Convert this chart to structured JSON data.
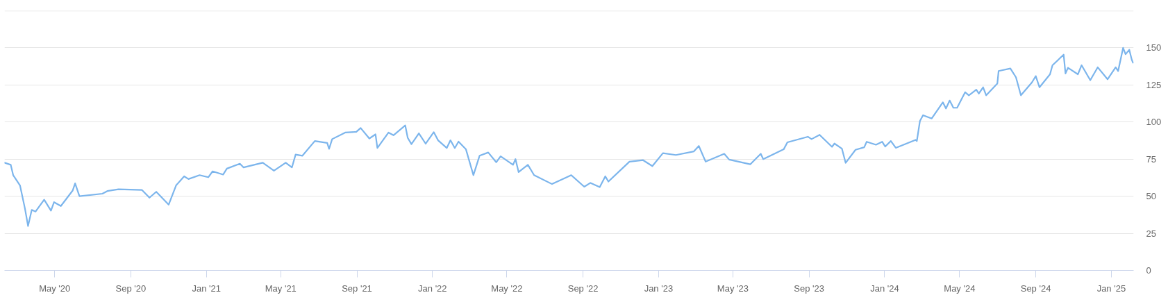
{
  "chart_data": {
    "type": "line",
    "x": [
      "2020-02-10",
      "2020-02-20",
      "2020-02-24",
      "2020-03-06",
      "2020-03-14",
      "2020-03-19",
      "2020-03-25",
      "2020-03-31",
      "2020-04-14",
      "2020-04-25",
      "2020-04-30",
      "2020-05-11",
      "2020-05-30",
      "2020-06-03",
      "2020-06-10",
      "2020-07-17",
      "2020-07-25",
      "2020-08-12",
      "2020-09-19",
      "2020-10-01",
      "2020-10-12",
      "2020-11-01",
      "2020-11-13",
      "2020-11-26",
      "2020-12-03",
      "2020-12-21",
      "2021-01-04",
      "2021-01-11",
      "2021-01-28",
      "2021-02-03",
      "2021-02-24",
      "2021-03-02",
      "2021-04-02",
      "2021-04-20",
      "2021-05-09",
      "2021-05-19",
      "2021-05-25",
      "2021-06-05",
      "2021-06-25",
      "2021-07-15",
      "2021-07-18",
      "2021-07-23",
      "2021-08-13",
      "2021-08-31",
      "2021-09-07",
      "2021-09-21",
      "2021-10-01",
      "2021-10-04",
      "2021-10-22",
      "2021-10-30",
      "2021-11-18",
      "2021-11-22",
      "2021-11-28",
      "2021-12-10",
      "2021-12-21",
      "2022-01-03",
      "2022-01-10",
      "2022-01-24",
      "2022-01-30",
      "2022-02-06",
      "2022-02-12",
      "2022-02-24",
      "2022-03-08",
      "2022-03-18",
      "2022-04-01",
      "2022-04-14",
      "2022-04-21",
      "2022-05-11",
      "2022-05-15",
      "2022-05-20",
      "2022-06-04",
      "2022-06-14",
      "2022-07-13",
      "2022-08-13",
      "2022-09-03",
      "2022-09-13",
      "2022-09-28",
      "2022-10-07",
      "2022-10-12",
      "2022-11-15",
      "2022-12-07",
      "2022-12-22",
      "2023-01-08",
      "2023-01-29",
      "2023-02-27",
      "2023-03-07",
      "2023-03-18",
      "2023-04-17",
      "2023-04-25",
      "2023-05-29",
      "2023-06-15",
      "2023-06-19",
      "2023-07-22",
      "2023-07-28",
      "2023-08-30",
      "2023-09-05",
      "2023-09-18",
      "2023-10-08",
      "2023-10-12",
      "2023-10-24",
      "2023-10-30",
      "2023-11-15",
      "2023-11-29",
      "2023-12-03",
      "2023-12-18",
      "2023-12-28",
      "2024-01-02",
      "2024-01-11",
      "2024-01-19",
      "2024-02-20",
      "2024-02-22",
      "2024-02-27",
      "2024-03-03",
      "2024-03-17",
      "2024-04-04",
      "2024-04-09",
      "2024-04-15",
      "2024-04-21",
      "2024-04-27",
      "2024-05-10",
      "2024-05-16",
      "2024-05-28",
      "2024-06-01",
      "2024-06-08",
      "2024-06-13",
      "2024-07-01",
      "2024-07-03",
      "2024-07-22",
      "2024-07-31",
      "2024-08-08",
      "2024-08-26",
      "2024-09-01",
      "2024-09-07",
      "2024-09-24",
      "2024-09-28",
      "2024-10-16",
      "2024-10-19",
      "2024-10-23",
      "2024-11-08",
      "2024-11-14",
      "2024-11-28",
      "2024-12-10",
      "2024-12-26",
      "2025-01-08",
      "2025-01-12",
      "2025-01-20",
      "2025-01-24",
      "2025-01-30",
      "2025-02-03",
      "2025-02-05"
    ],
    "series": [
      {
        "color": "#7cb5ec",
        "values": [
          72.6,
          71.2,
          64.2,
          57.3,
          41.7,
          29.9,
          40.8,
          39.6,
          47.7,
          40.3,
          46.0,
          43.4,
          53.8,
          58.7,
          50.0,
          51.7,
          53.5,
          54.7,
          54.2,
          49.0,
          53.0,
          44.3,
          57.3,
          63.4,
          61.6,
          64.2,
          62.8,
          66.8,
          64.6,
          68.6,
          71.9,
          69.4,
          72.6,
          67.2,
          72.6,
          69.4,
          78.1,
          77.3,
          87.2,
          85.9,
          81.9,
          88.5,
          92.9,
          93.4,
          96.0,
          88.9,
          91.7,
          82.5,
          92.9,
          91.1,
          97.7,
          89.4,
          85.1,
          92.4,
          85.4,
          93.2,
          87.7,
          82.5,
          87.7,
          82.5,
          86.8,
          81.6,
          64.2,
          77.3,
          79.5,
          72.9,
          76.9,
          71.2,
          75.0,
          66.3,
          71.2,
          64.2,
          58.2,
          64.2,
          56.4,
          59.0,
          56.1,
          63.4,
          59.9,
          73.3,
          74.3,
          70.3,
          79.0,
          77.8,
          80.2,
          83.9,
          73.3,
          78.6,
          74.7,
          71.5,
          78.6,
          75.0,
          81.6,
          86.3,
          90.1,
          88.5,
          91.4,
          83.3,
          85.5,
          82.1,
          72.5,
          81.3,
          83.0,
          86.7,
          84.7,
          86.7,
          83.5,
          87.2,
          82.6,
          88.0,
          87.2,
          100.7,
          104.6,
          102.4,
          113.3,
          109.1,
          114.5,
          109.6,
          109.6,
          120.1,
          118.0,
          121.8,
          119.2,
          123.4,
          118.0,
          126.0,
          134.4,
          136.1,
          130.2,
          118.0,
          126.8,
          131.0,
          123.4,
          132.2,
          138.3,
          145.4,
          132.7,
          136.6,
          132.2,
          138.3,
          128.2,
          136.9,
          128.8,
          136.9,
          134.4,
          150.0,
          145.7,
          148.7,
          142.0,
          140.0
        ]
      }
    ],
    "xlim": [
      "2020-02-10",
      "2025-02-06"
    ],
    "ylim": [
      0,
      175
    ],
    "xticks": [
      {
        "value": "2020-05-01",
        "label": "May '20"
      },
      {
        "value": "2020-09-01",
        "label": "Sep '20"
      },
      {
        "value": "2021-01-01",
        "label": "Jan '21"
      },
      {
        "value": "2021-05-01",
        "label": "May '21"
      },
      {
        "value": "2021-09-01",
        "label": "Sep '21"
      },
      {
        "value": "2022-01-01",
        "label": "Jan '22"
      },
      {
        "value": "2022-05-01",
        "label": "May '22"
      },
      {
        "value": "2022-09-01",
        "label": "Sep '22"
      },
      {
        "value": "2023-01-01",
        "label": "Jan '23"
      },
      {
        "value": "2023-05-01",
        "label": "May '23"
      },
      {
        "value": "2023-09-01",
        "label": "Sep '23"
      },
      {
        "value": "2024-01-01",
        "label": "Jan '24"
      },
      {
        "value": "2024-05-01",
        "label": "May '24"
      },
      {
        "value": "2024-09-01",
        "label": "Sep '24"
      },
      {
        "value": "2025-01-01",
        "label": "Jan '25"
      }
    ],
    "yticks": [
      0,
      25,
      50,
      75,
      100,
      125,
      150,
      {
        "value": 175,
        "label": null
      }
    ],
    "grid": "y",
    "line_style": "solid"
  }
}
